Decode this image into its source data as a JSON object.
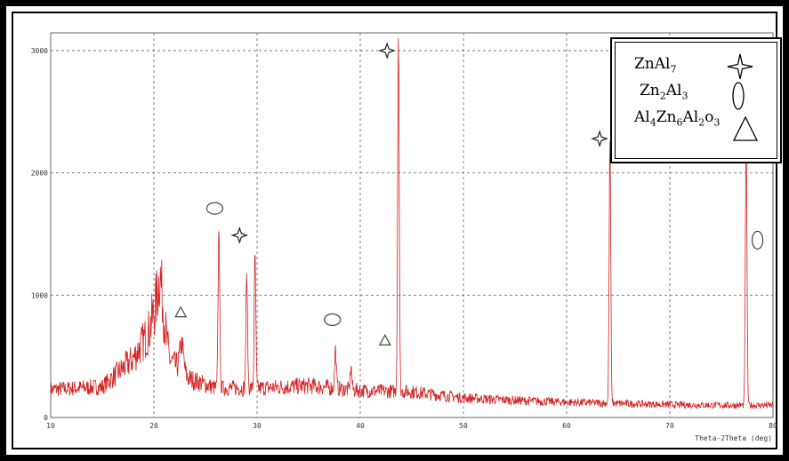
{
  "chart_data": {
    "type": "line",
    "xlabel": "Theta-2Theta (deg)",
    "ylabel": "",
    "xlim": [
      10,
      80
    ],
    "ylim": [
      0,
      3000
    ],
    "x_ticks": [
      10,
      20,
      30,
      40,
      50,
      60,
      70,
      80
    ],
    "y_ticks": [
      0,
      1000,
      2000,
      3000
    ],
    "grid": true,
    "line_color": "#d42020",
    "baseline": [
      [
        10,
        230
      ],
      [
        15,
        250
      ],
      [
        18,
        480
      ],
      [
        19.5,
        700
      ],
      [
        20.6,
        1050
      ],
      [
        21.5,
        480
      ],
      [
        23,
        330
      ],
      [
        26,
        240
      ],
      [
        30,
        240
      ],
      [
        35,
        260
      ],
      [
        40,
        220
      ],
      [
        45,
        210
      ],
      [
        50,
        160
      ],
      [
        55,
        140
      ],
      [
        60,
        125
      ],
      [
        65,
        115
      ],
      [
        70,
        105
      ],
      [
        75,
        100
      ],
      [
        80,
        100
      ]
    ],
    "peaks": [
      {
        "x": 20.6,
        "y": 1170
      },
      {
        "x": 22.7,
        "y": 600
      },
      {
        "x": 26.3,
        "y": 1560
      },
      {
        "x": 29.0,
        "y": 1150
      },
      {
        "x": 29.8,
        "y": 1330
      },
      {
        "x": 37.6,
        "y": 560
      },
      {
        "x": 39.1,
        "y": 420
      },
      {
        "x": 43.7,
        "y": 3150
      },
      {
        "x": 64.2,
        "y": 2270
      },
      {
        "x": 77.4,
        "y": 2250
      }
    ],
    "annotations": [
      {
        "phase": "ZnAl7",
        "shape": "star",
        "x": 28.3,
        "y": 1490
      },
      {
        "phase": "ZnAl7",
        "shape": "star",
        "x": 42.6,
        "y": 3000
      },
      {
        "phase": "ZnAl7",
        "shape": "star",
        "x": 63.2,
        "y": 2280
      },
      {
        "phase": "Zn2Al3",
        "shape": "ellipse",
        "x": 25.9,
        "y": 1710
      },
      {
        "phase": "Zn2Al3",
        "shape": "ellipse",
        "x": 37.3,
        "y": 800
      },
      {
        "phase": "Zn2Al3",
        "shape": "ellipse",
        "x": 78.5,
        "y": 1450
      },
      {
        "phase": "Al4Zn6Al2O3",
        "shape": "triangle",
        "x": 22.6,
        "y": 860
      },
      {
        "phase": "Al4Zn6Al2O3",
        "shape": "triangle",
        "x": 42.4,
        "y": 630
      }
    ]
  },
  "legend": {
    "entries": [
      {
        "base": "ZnAl",
        "sub": "7",
        "tail": "",
        "tail_sub": "",
        "tail2": "",
        "tail2_sub": "",
        "icon": "star"
      },
      {
        "base": "Zn",
        "sub": "2",
        "tail": "Al",
        "tail_sub": "3",
        "tail2": "",
        "tail2_sub": "",
        "icon": "ellipse"
      },
      {
        "base": "Al",
        "sub": "4",
        "tail": "Zn",
        "tail_sub": "6",
        "tail2": "Al",
        "tail2_sub": "2",
        "tail3": "o",
        "tail3_sub": "3",
        "icon": "triangle"
      }
    ]
  }
}
